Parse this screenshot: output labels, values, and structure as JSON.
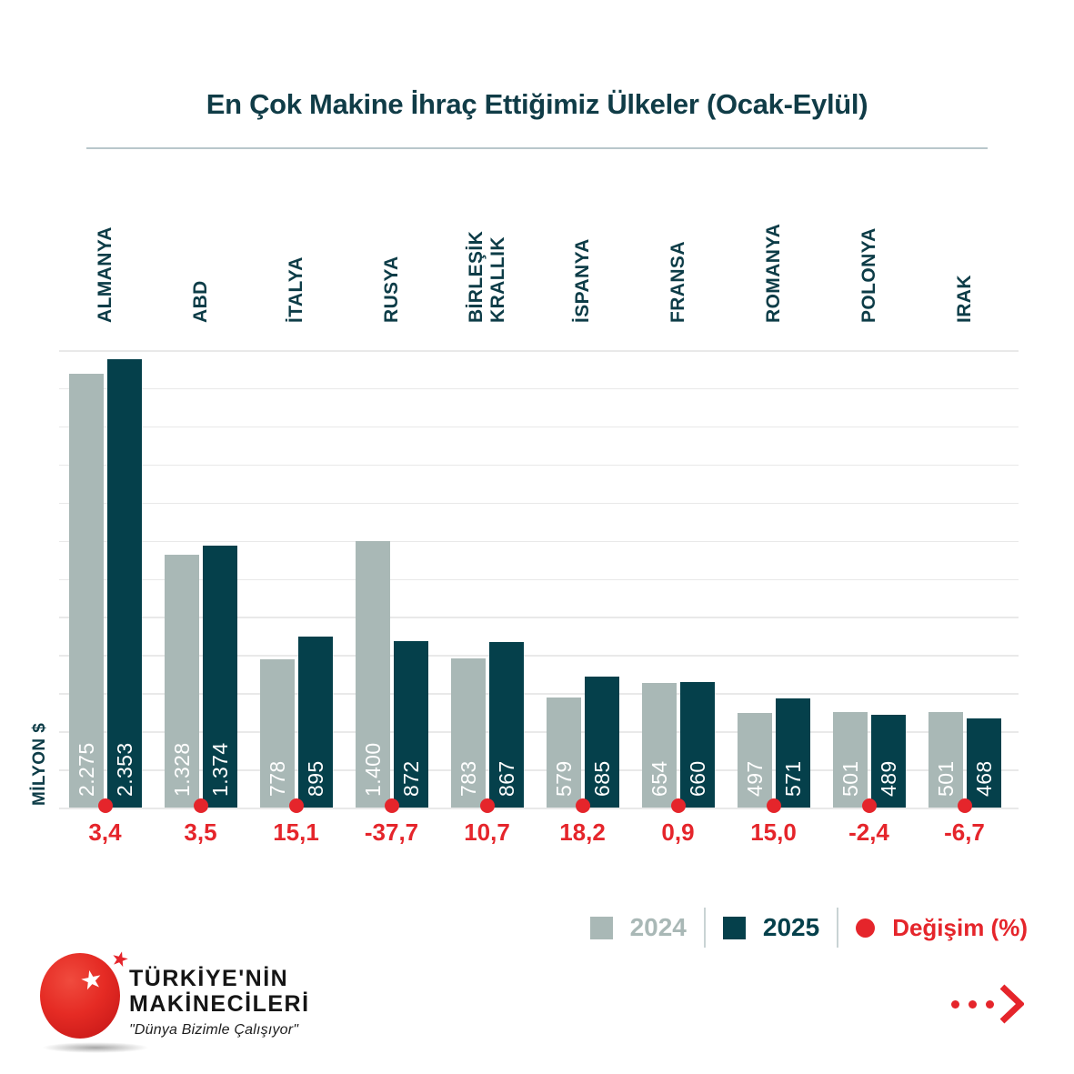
{
  "title": "En Çok Makine İhraç Ettiğimiz Ülkeler (Ocak-Eylül)",
  "y_axis_label": "MİLYON $",
  "colors": {
    "bar_2024": "#a9b8b6",
    "bar_2025": "#05404b",
    "accent_red": "#e5252b",
    "title_teal": "#103c47",
    "gridline": "#e9e9e9"
  },
  "chart_data": {
    "type": "bar",
    "title": "En Çok Makine İhraç Ettiğimiz Ülkeler (Ocak-Eylül)",
    "ylabel": "MİLYON $",
    "ylim": [
      0,
      2400
    ],
    "grid_step": 200,
    "grid": true,
    "legend_position": "bottom-right",
    "categories": [
      "ALMANYA",
      "ABD",
      "İTALYA",
      "RUSYA",
      "BİRLEŞİK KRALLIK",
      "İSPANYA",
      "FRANSA",
      "ROMANYA",
      "POLONYA",
      "IRAK"
    ],
    "series": [
      {
        "name": "2024",
        "values": [
          2275,
          1328,
          778,
          1400,
          783,
          579,
          654,
          497,
          501,
          501
        ],
        "labels": [
          "2.275",
          "1.328",
          "778",
          "1.400",
          "783",
          "579",
          "654",
          "497",
          "501",
          "501"
        ]
      },
      {
        "name": "2025",
        "values": [
          2353,
          1374,
          895,
          872,
          867,
          685,
          660,
          571,
          489,
          468
        ],
        "labels": [
          "2.353",
          "1.374",
          "895",
          "872",
          "867",
          "685",
          "660",
          "571",
          "489",
          "468"
        ]
      }
    ],
    "change_pct": [
      3.4,
      3.5,
      15.1,
      -37.7,
      10.7,
      18.2,
      0.9,
      15.0,
      -2.4,
      -6.7
    ],
    "change_labels": [
      "3,4",
      "3,5",
      "15,1",
      "-37,7",
      "10,7",
      "18,2",
      "0,9",
      "15,0",
      "-2,4",
      "-6,7"
    ]
  },
  "legend": {
    "year1": "2024",
    "year2": "2025",
    "change": "Değişim (%)"
  },
  "branding": {
    "line1": "TÜRKİYE'NİN",
    "line2": "MAKİNECİLERİ",
    "tagline": "\"Dünya Bizimle Çalışıyor\""
  }
}
